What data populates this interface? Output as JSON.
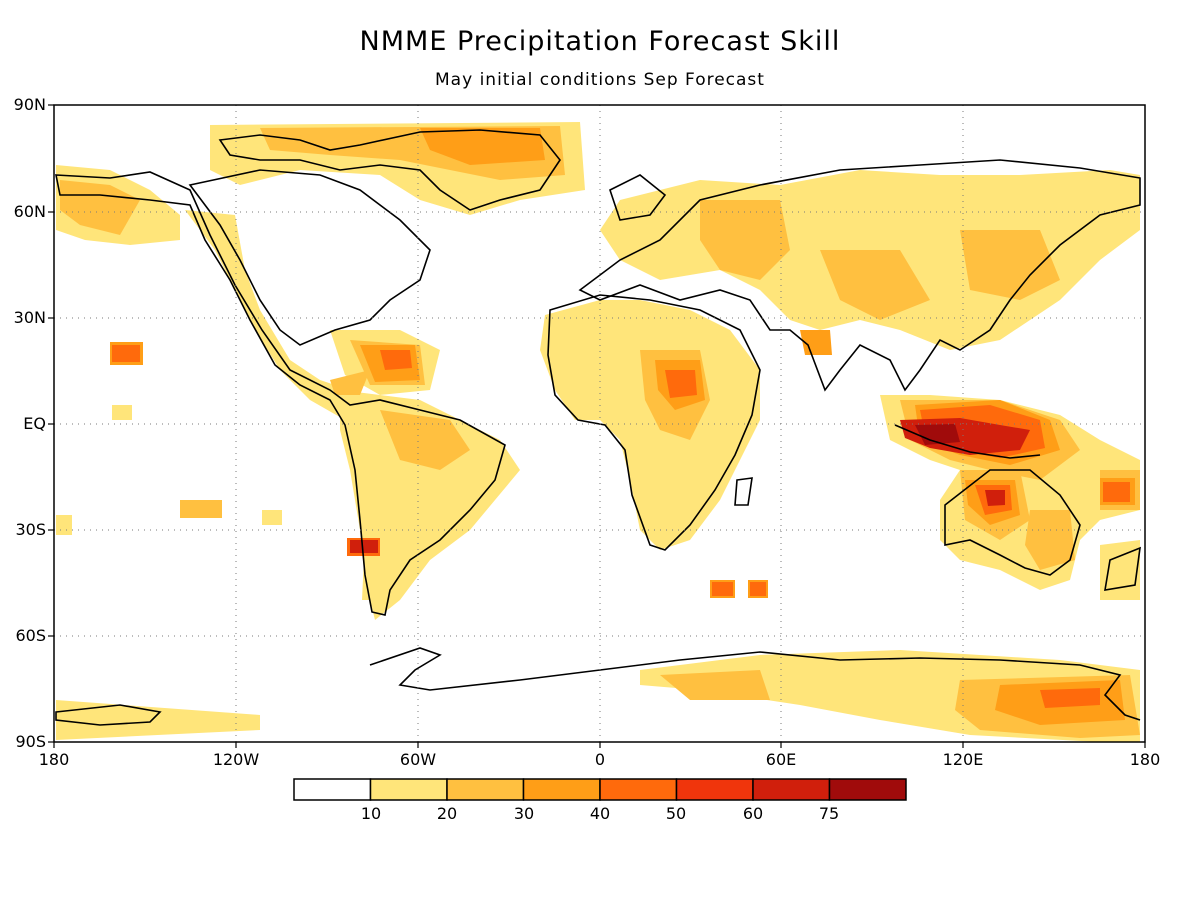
{
  "title": "NMME Precipitation Forecast Skill",
  "subtitle": "May initial conditions  Sep Forecast",
  "y_axis_labels": [
    "90N",
    "60N",
    "30N",
    "EQ",
    "30S",
    "60S",
    "90S"
  ],
  "x_axis_labels": [
    "180",
    "120W",
    "60W",
    "0",
    "60E",
    "120E",
    "180"
  ],
  "colorbar": {
    "labels": [
      "10",
      "20",
      "30",
      "40",
      "50",
      "60",
      "75"
    ],
    "colors": [
      "#ffffff",
      "#ffe57a",
      "#ffc040",
      "#ff9e17",
      "#ff6a0c",
      "#f0350c",
      "#d01f0c",
      "#a00b0b"
    ]
  },
  "grid": true
}
